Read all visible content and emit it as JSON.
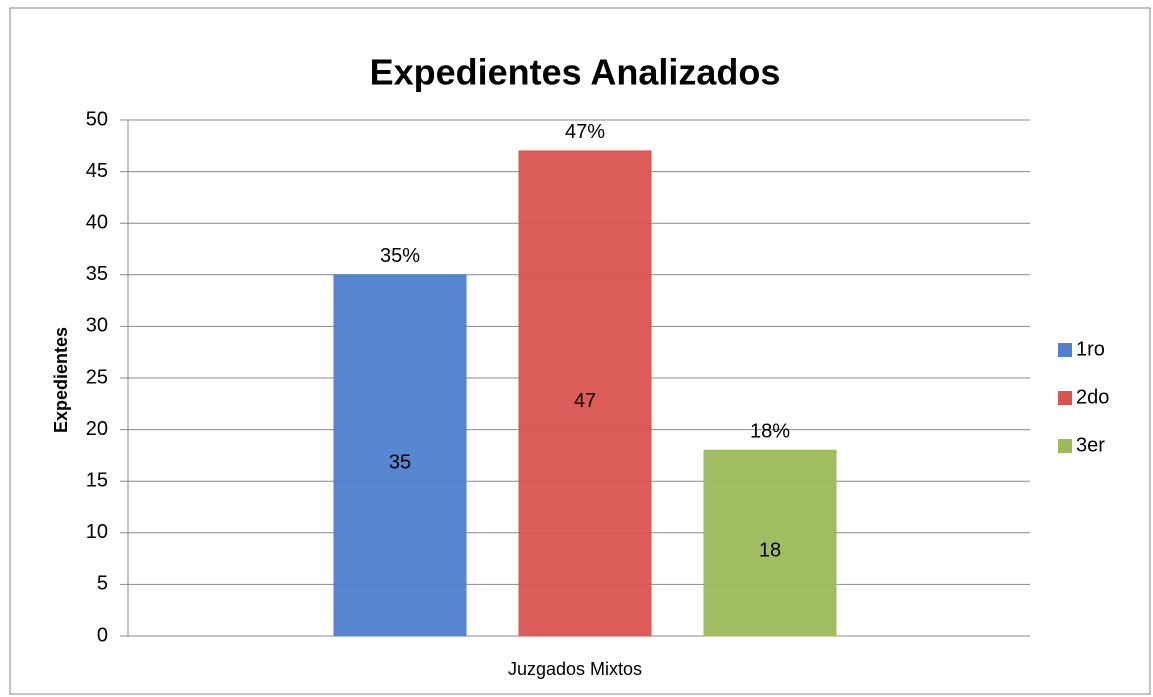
{
  "chart_data": {
    "type": "bar",
    "title": "Expedientes Analizados",
    "y_label": "Expedientes",
    "x_label": "Juzgados Mixtos",
    "categories": [
      "Juzgados Mixtos"
    ],
    "series": [
      {
        "name": "1ro",
        "color": "#4f81d0",
        "values": [
          35
        ],
        "value_labels": [
          "35%"
        ]
      },
      {
        "name": "2do",
        "color": "#d9534f",
        "values": [
          47
        ],
        "value_labels": [
          "47%"
        ]
      },
      {
        "name": "3er",
        "color": "#9bbb59",
        "values": [
          18
        ],
        "value_labels": [
          "18%"
        ]
      }
    ],
    "ylim": [
      0,
      50
    ],
    "yticks": [
      0,
      5,
      10,
      15,
      20,
      25,
      30,
      35,
      40,
      45,
      50
    ],
    "grid": true,
    "legend": "right"
  }
}
